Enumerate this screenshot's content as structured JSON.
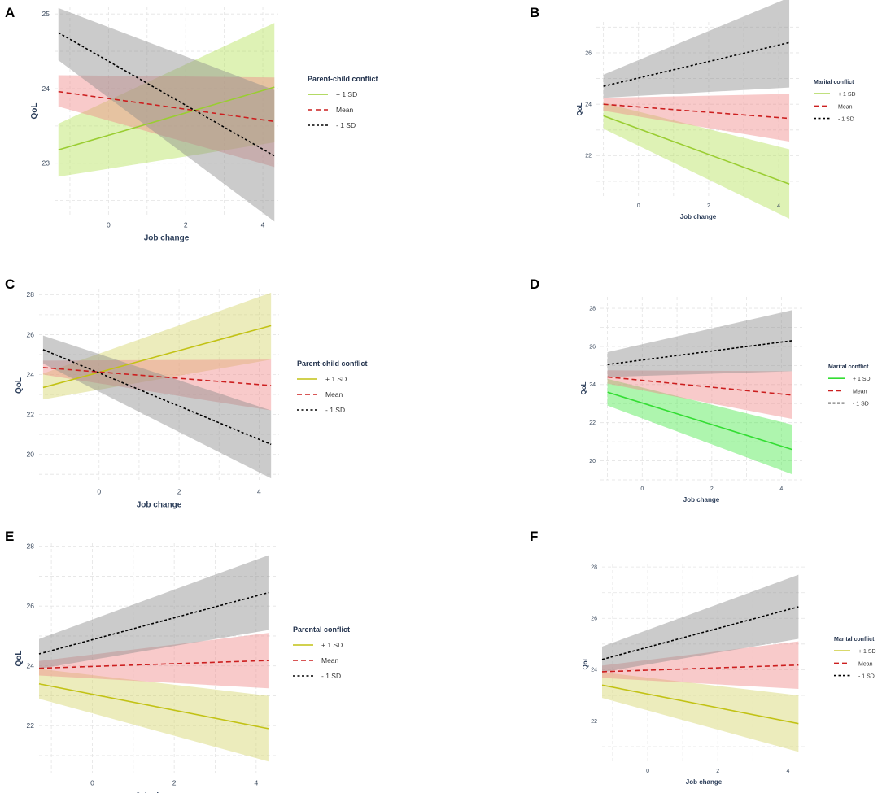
{
  "colors": {
    "plus": "#9acd32",
    "plus_alt": "#33dd33",
    "plus_olive": "#c2c215",
    "mean": "#cc1f1f",
    "minus": "#000000",
    "band_plus": "#b5e35a",
    "band_plus_alt": "#4ce84c",
    "band_plus_olive": "#d4d46a",
    "band_mean": "#f08a8a",
    "band_minus": "#8c8c8c",
    "grid": "#e4e4e4"
  },
  "chart_data": [
    {
      "panel": "A",
      "type": "line",
      "xlabel": "Job change",
      "ylabel": "QoL",
      "xlim": [
        -1.4,
        4.4
      ],
      "ylim": [
        22.3,
        25.1
      ],
      "xticks": [
        "0",
        "2",
        "4"
      ],
      "xtick_values": [
        0,
        2,
        4
      ],
      "yticks": [
        "23",
        "24",
        "25"
      ],
      "ytick_values": [
        23,
        24,
        25
      ],
      "legend_title": "Parent-child conflict",
      "series": [
        {
          "name": "+ 1 SD",
          "x": [
            -1.3,
            4.3
          ],
          "y": [
            23.18,
            24.02
          ],
          "lo": [
            22.82,
            23.28
          ],
          "hi": [
            23.53,
            24.88
          ],
          "style": "solid",
          "palette": "green"
        },
        {
          "name": "Mean",
          "x": [
            -1.3,
            4.3
          ],
          "y": [
            23.96,
            23.56
          ],
          "lo": [
            23.76,
            22.95
          ],
          "hi": [
            24.18,
            24.15
          ],
          "style": "dashed",
          "palette": "red"
        },
        {
          "name": "- 1 SD",
          "x": [
            -1.3,
            4.3
          ],
          "y": [
            24.75,
            23.1
          ],
          "lo": [
            24.38,
            22.22
          ],
          "hi": [
            25.08,
            23.98
          ],
          "style": "dotted",
          "palette": "gray"
        }
      ]
    },
    {
      "panel": "B",
      "type": "line",
      "xlabel": "Job change",
      "ylabel": "QoL",
      "xlim": [
        -1.2,
        4.6
      ],
      "ylim": [
        20.4,
        27.2
      ],
      "xticks": [
        "0",
        "2",
        "4"
      ],
      "xtick_values": [
        0,
        2,
        4
      ],
      "yticks": [
        "22",
        "24",
        "26"
      ],
      "ytick_values": [
        22,
        24,
        26
      ],
      "legend_title": "Marital conflict",
      "series": [
        {
          "name": "+ 1 SD",
          "x": [
            -1.0,
            4.3
          ],
          "y": [
            23.55,
            20.9
          ],
          "lo": [
            23.05,
            19.55
          ],
          "hi": [
            24.05,
            22.25
          ],
          "style": "solid",
          "palette": "green"
        },
        {
          "name": "Mean",
          "x": [
            -1.0,
            4.3
          ],
          "y": [
            24.0,
            23.45
          ],
          "lo": [
            23.75,
            22.55
          ],
          "hi": [
            24.25,
            24.4
          ],
          "style": "dashed",
          "palette": "red"
        },
        {
          "name": "- 1 SD",
          "x": [
            -1.0,
            4.3
          ],
          "y": [
            24.7,
            26.4
          ],
          "lo": [
            24.25,
            24.65
          ],
          "hi": [
            25.15,
            28.15
          ],
          "style": "dotted",
          "palette": "gray"
        }
      ]
    },
    {
      "panel": "C",
      "type": "line",
      "xlabel": "Job change",
      "ylabel": "QoL",
      "xlim": [
        -1.5,
        4.5
      ],
      "ylim": [
        18.6,
        28.3
      ],
      "xticks": [
        "0",
        "2",
        "4"
      ],
      "xtick_values": [
        0,
        2,
        4
      ],
      "yticks": [
        "20",
        "22",
        "24",
        "26",
        "28"
      ],
      "ytick_values": [
        20,
        22,
        24,
        26,
        28
      ],
      "legend_title": "Parent-child conflict",
      "series": [
        {
          "name": "+ 1 SD",
          "x": [
            -1.4,
            4.3
          ],
          "y": [
            23.35,
            26.45
          ],
          "lo": [
            22.75,
            24.75
          ],
          "hi": [
            24.05,
            28.1
          ],
          "style": "solid",
          "palette": "olive"
        },
        {
          "name": "Mean",
          "x": [
            -1.4,
            4.3
          ],
          "y": [
            24.35,
            23.45
          ],
          "lo": [
            24.0,
            22.2
          ],
          "hi": [
            24.7,
            24.75
          ],
          "style": "dashed",
          "palette": "red"
        },
        {
          "name": "- 1 SD",
          "x": [
            -1.4,
            4.3
          ],
          "y": [
            25.25,
            20.5
          ],
          "lo": [
            24.55,
            18.8
          ],
          "hi": [
            25.95,
            22.2
          ],
          "style": "dotted",
          "palette": "gray"
        }
      ]
    },
    {
      "panel": "D",
      "type": "line",
      "xlabel": "Job change",
      "ylabel": "QoL",
      "xlim": [
        -1.2,
        4.6
      ],
      "ylim": [
        19.0,
        28.6
      ],
      "xticks": [
        "0",
        "2",
        "4"
      ],
      "xtick_values": [
        0,
        2,
        4
      ],
      "yticks": [
        "20",
        "22",
        "24",
        "26",
        "28"
      ],
      "ytick_values": [
        20,
        22,
        24,
        26,
        28
      ],
      "legend_title": "Marital conflict",
      "series": [
        {
          "name": "+ 1 SD",
          "x": [
            -1.0,
            4.3
          ],
          "y": [
            23.6,
            20.6
          ],
          "lo": [
            22.9,
            19.3
          ],
          "hi": [
            24.3,
            21.9
          ],
          "style": "solid",
          "palette": "bright"
        },
        {
          "name": "Mean",
          "x": [
            -1.0,
            4.3
          ],
          "y": [
            24.4,
            23.45
          ],
          "lo": [
            24.05,
            22.2
          ],
          "hi": [
            24.75,
            24.7
          ],
          "style": "dashed",
          "palette": "red"
        },
        {
          "name": "- 1 SD",
          "x": [
            -1.0,
            4.3
          ],
          "y": [
            25.05,
            26.3
          ],
          "lo": [
            24.4,
            24.7
          ],
          "hi": [
            25.7,
            27.9
          ],
          "style": "dotted",
          "palette": "gray"
        }
      ]
    },
    {
      "panel": "E",
      "type": "line",
      "xlabel": "Job change",
      "ylabel": "QoL",
      "xlim": [
        -1.3,
        4.5
      ],
      "ylim": [
        20.4,
        28.1
      ],
      "xticks": [
        "0",
        "2",
        "4"
      ],
      "xtick_values": [
        0,
        2,
        4
      ],
      "yticks": [
        "22",
        "24",
        "26",
        "28"
      ],
      "ytick_values": [
        22,
        24,
        26,
        28
      ],
      "legend_title": "Parental conflict",
      "series": [
        {
          "name": "+ 1 SD",
          "x": [
            -1.3,
            4.3
          ],
          "y": [
            23.4,
            21.9
          ],
          "lo": [
            22.9,
            20.8
          ],
          "hi": [
            23.9,
            23.0
          ],
          "style": "solid",
          "palette": "olive"
        },
        {
          "name": "Mean",
          "x": [
            -1.3,
            4.3
          ],
          "y": [
            23.92,
            24.18
          ],
          "lo": [
            23.68,
            23.25
          ],
          "hi": [
            24.16,
            25.1
          ],
          "style": "dashed",
          "palette": "red"
        },
        {
          "name": "- 1 SD",
          "x": [
            -1.3,
            4.3
          ],
          "y": [
            24.4,
            26.45
          ],
          "lo": [
            23.9,
            25.2
          ],
          "hi": [
            24.9,
            27.7
          ],
          "style": "dotted",
          "palette": "gray"
        }
      ]
    },
    {
      "panel": "F",
      "type": "line",
      "xlabel": "Job change",
      "ylabel": "QoL",
      "xlim": [
        -1.3,
        4.5
      ],
      "ylim": [
        20.4,
        28.1
      ],
      "xticks": [
        "0",
        "2",
        "4"
      ],
      "xtick_values": [
        0,
        2,
        4
      ],
      "yticks": [
        "22",
        "24",
        "26",
        "28"
      ],
      "ytick_values": [
        22,
        24,
        26,
        28
      ],
      "legend_title": "Marital conflict",
      "series": [
        {
          "name": "+ 1 SD",
          "x": [
            -1.3,
            4.3
          ],
          "y": [
            23.4,
            21.9
          ],
          "lo": [
            22.9,
            20.8
          ],
          "hi": [
            23.9,
            23.0
          ],
          "style": "solid",
          "palette": "olive"
        },
        {
          "name": "Mean",
          "x": [
            -1.3,
            4.3
          ],
          "y": [
            23.92,
            24.18
          ],
          "lo": [
            23.68,
            23.25
          ],
          "hi": [
            24.16,
            25.1
          ],
          "style": "dashed",
          "palette": "red"
        },
        {
          "name": "- 1 SD",
          "x": [
            -1.3,
            4.3
          ],
          "y": [
            24.4,
            26.45
          ],
          "lo": [
            23.9,
            25.2
          ],
          "hi": [
            24.9,
            27.7
          ],
          "style": "dotted",
          "palette": "gray"
        }
      ]
    }
  ]
}
